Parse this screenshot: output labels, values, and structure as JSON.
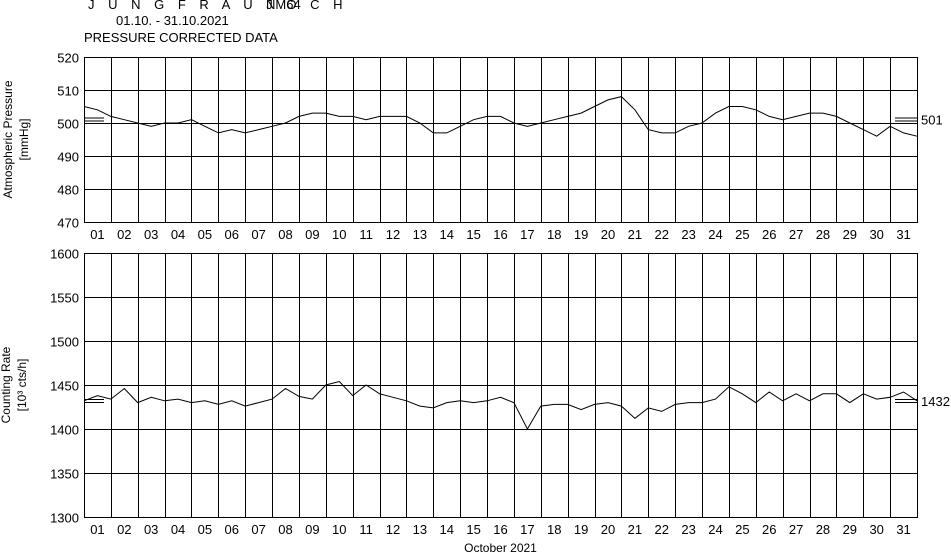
{
  "header": {
    "station": "J U N G F R A U J O C H",
    "monitor": "NM64",
    "period": "01.10. - 31.10.2021",
    "subtitle": "PRESSURE CORRECTED DATA"
  },
  "chart_data": [
    {
      "name": "pressure",
      "type": "line",
      "ylabel_line1": "Atmospheric Pressure",
      "ylabel_line2": "[mmHg]",
      "ylim": [
        470,
        520
      ],
      "yticks": [
        470,
        480,
        490,
        500,
        510,
        520
      ],
      "xlim": [
        0,
        31
      ],
      "categories": [
        "01",
        "02",
        "03",
        "04",
        "05",
        "06",
        "07",
        "08",
        "09",
        "10",
        "11",
        "12",
        "13",
        "14",
        "15",
        "16",
        "17",
        "18",
        "19",
        "20",
        "21",
        "22",
        "23",
        "24",
        "25",
        "26",
        "27",
        "28",
        "29",
        "30",
        "31"
      ],
      "grid": true,
      "reference_value": 501,
      "reference_label": "501",
      "series": [
        {
          "x": [
            0,
            0.5,
            1,
            1.5,
            2,
            2.5,
            3,
            3.5,
            4,
            4.5,
            5,
            5.5,
            6,
            6.5,
            7,
            7.5,
            8,
            8.5,
            9,
            9.5,
            10,
            10.5,
            11,
            11.5,
            12,
            12.5,
            13,
            13.5,
            14,
            14.5,
            15,
            15.5,
            16,
            16.5,
            17,
            17.5,
            18,
            18.5,
            19,
            19.5,
            20,
            20.5,
            21,
            21.5,
            22,
            22.5,
            23,
            23.5,
            24,
            24.5,
            25,
            25.5,
            26,
            26.5,
            27,
            27.5,
            28,
            28.5,
            29,
            29.5,
            30,
            30.5,
            31
          ],
          "values": [
            505,
            504,
            502,
            501,
            500,
            499,
            500,
            500,
            501,
            499,
            497,
            498,
            497,
            498,
            499,
            500,
            502,
            503,
            503,
            502,
            502,
            501,
            502,
            502,
            502,
            500,
            497,
            497,
            499,
            501,
            502,
            502,
            500,
            499,
            500,
            501,
            502,
            503,
            505,
            507,
            508,
            504,
            498,
            497,
            497,
            499,
            500,
            503,
            505,
            505,
            504,
            502,
            501,
            502,
            503,
            503,
            502,
            500,
            498,
            496,
            499,
            497,
            496
          ]
        }
      ]
    },
    {
      "name": "counting-rate",
      "type": "line",
      "ylabel_line1": "Counting Rate",
      "ylabel_line2": "[10³ cts/h]",
      "ylim": [
        1300,
        1600
      ],
      "yticks": [
        1300,
        1350,
        1400,
        1450,
        1500,
        1550,
        1600
      ],
      "xlim": [
        0,
        31
      ],
      "categories": [
        "01",
        "02",
        "03",
        "04",
        "05",
        "06",
        "07",
        "08",
        "09",
        "10",
        "11",
        "12",
        "13",
        "14",
        "15",
        "16",
        "17",
        "18",
        "19",
        "20",
        "21",
        "22",
        "23",
        "24",
        "25",
        "26",
        "27",
        "28",
        "29",
        "30",
        "31"
      ],
      "xlabel": "October 2021",
      "grid": true,
      "reference_value": 1432,
      "reference_label": "1432",
      "series": [
        {
          "x": [
            0,
            0.5,
            1,
            1.5,
            2,
            2.5,
            3,
            3.5,
            4,
            4.5,
            5,
            5.5,
            6,
            6.5,
            7,
            7.5,
            8,
            8.5,
            9,
            9.5,
            10,
            10.5,
            11,
            11.5,
            12,
            12.5,
            13,
            13.5,
            14,
            14.5,
            15,
            15.5,
            16,
            16.5,
            17,
            17.5,
            18,
            18.5,
            19,
            19.5,
            20,
            20.5,
            21,
            21.5,
            22,
            22.5,
            23,
            23.5,
            24,
            24.5,
            25,
            25.5,
            26,
            26.5,
            27,
            27.5,
            28,
            28.5,
            29,
            29.5,
            30,
            30.5,
            31
          ],
          "values": [
            1432,
            1438,
            1434,
            1446,
            1430,
            1436,
            1432,
            1434,
            1430,
            1432,
            1428,
            1432,
            1426,
            1430,
            1434,
            1446,
            1437,
            1434,
            1450,
            1454,
            1438,
            1450,
            1440,
            1436,
            1432,
            1426,
            1424,
            1430,
            1432,
            1430,
            1432,
            1436,
            1430,
            1400,
            1426,
            1428,
            1428,
            1422,
            1428,
            1430,
            1426,
            1412,
            1424,
            1420,
            1428,
            1430,
            1430,
            1434,
            1448,
            1440,
            1430,
            1442,
            1432,
            1440,
            1432,
            1440,
            1440,
            1430,
            1440,
            1434,
            1436,
            1442,
            1432
          ]
        }
      ]
    }
  ]
}
